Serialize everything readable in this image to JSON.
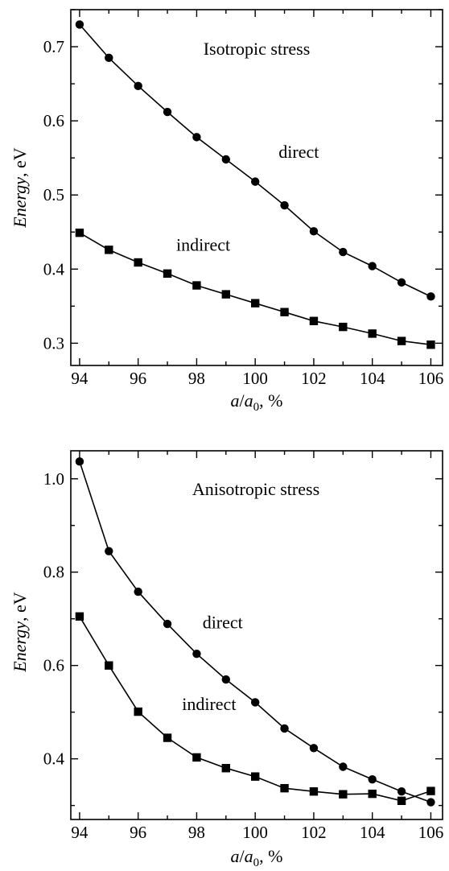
{
  "chart_data": [
    {
      "type": "line",
      "title": "Isotropic stress",
      "ylabel": "Energy, eV",
      "ylabel_parts": {
        "italic": "Energy",
        "rest": ", eV"
      },
      "xlabel": "a/a0, %",
      "xlabel_parts": {
        "a": "a",
        "slash": "/",
        "a0": "a",
        "sub": "0",
        "rest": ", %"
      },
      "xlim": [
        93.7,
        106.4
      ],
      "ylim": [
        0.27,
        0.75
      ],
      "xticks": [
        94,
        96,
        98,
        100,
        102,
        104,
        106
      ],
      "yticks": [
        0.3,
        0.4,
        0.5,
        0.6,
        0.7
      ],
      "x": [
        94,
        95,
        96,
        97,
        98,
        99,
        100,
        101,
        102,
        103,
        104,
        105,
        106
      ],
      "series": [
        {
          "name": "direct",
          "marker": "circle",
          "values": [
            0.73,
            0.685,
            0.647,
            0.612,
            0.578,
            0.548,
            0.518,
            0.486,
            0.451,
            0.423,
            0.404,
            0.382,
            0.363
          ]
        },
        {
          "name": "indirect",
          "marker": "square",
          "values": [
            0.449,
            0.426,
            0.409,
            0.394,
            0.378,
            0.366,
            0.354,
            0.342,
            0.33,
            0.322,
            0.313,
            0.303,
            0.298
          ]
        }
      ],
      "annotations": [
        {
          "text": "direct",
          "x": 100.8,
          "y": 0.55
        },
        {
          "text": "indirect",
          "x": 97.3,
          "y": 0.425
        }
      ],
      "grid": false,
      "legend": "none"
    },
    {
      "type": "line",
      "title": "Anisotropic stress",
      "ylabel": "Energy, eV",
      "ylabel_parts": {
        "italic": "Energy",
        "rest": ", eV"
      },
      "xlabel": "a/a0, %",
      "xlabel_parts": {
        "a": "a",
        "slash": "/",
        "a0": "a",
        "sub": "0",
        "rest": ", %"
      },
      "xlim": [
        93.7,
        106.4
      ],
      "ylim": [
        0.27,
        1.06
      ],
      "xticks": [
        94,
        96,
        98,
        100,
        102,
        104,
        106
      ],
      "yticks": [
        0.4,
        0.6,
        0.8,
        1.0
      ],
      "ytick_labels": [
        "0.4",
        "0.6",
        "0.8",
        "1.0"
      ],
      "x": [
        94,
        95,
        96,
        97,
        98,
        99,
        100,
        101,
        102,
        103,
        104,
        105,
        106
      ],
      "series": [
        {
          "name": "direct",
          "marker": "circle",
          "values": [
            1.037,
            0.845,
            0.758,
            0.689,
            0.625,
            0.57,
            0.521,
            0.465,
            0.423,
            0.383,
            0.356,
            0.33,
            0.307
          ]
        },
        {
          "name": "indirect",
          "marker": "square",
          "values": [
            0.705,
            0.6,
            0.501,
            0.445,
            0.403,
            0.38,
            0.362,
            0.337,
            0.33,
            0.324,
            0.325,
            0.31,
            0.331
          ]
        }
      ],
      "annotations": [
        {
          "text": "direct",
          "x": 98.2,
          "y": 0.68
        },
        {
          "text": "indirect",
          "x": 97.5,
          "y": 0.505
        }
      ],
      "grid": false,
      "legend": "none"
    }
  ]
}
